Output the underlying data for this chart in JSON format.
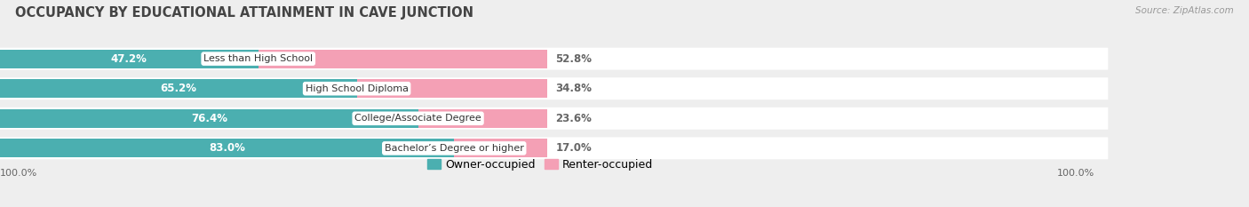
{
  "title": "OCCUPANCY BY EDUCATIONAL ATTAINMENT IN CAVE JUNCTION",
  "source": "Source: ZipAtlas.com",
  "categories": [
    "Less than High School",
    "High School Diploma",
    "College/Associate Degree",
    "Bachelor’s Degree or higher"
  ],
  "owner_pct": [
    47.2,
    65.2,
    76.4,
    83.0
  ],
  "renter_pct": [
    52.8,
    34.8,
    23.6,
    17.0
  ],
  "owner_color": "#4BAFB0",
  "renter_color": "#F4A0B5",
  "bg_color": "#eeeeee",
  "row_bg_light": "#f9f9f9",
  "bar_height": 0.62,
  "title_color": "#444444",
  "source_color": "#999999",
  "label_color_owner_inside": "#ffffff",
  "label_color_renter_outside": "#666666",
  "legend_owner": "Owner-occupied",
  "legend_renter": "Renter-occupied",
  "axis_label_left": "100.0%",
  "axis_label_right": "100.0%"
}
